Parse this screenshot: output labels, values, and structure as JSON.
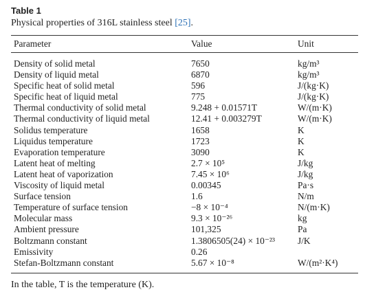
{
  "table_label": "Table 1",
  "caption": "Physical properties of 316L stainless steel",
  "citation": "[25]",
  "caption_end": ".",
  "headers": {
    "parameter": "Parameter",
    "value": "Value",
    "unit": "Unit"
  },
  "rows": [
    {
      "parameter": "Density of solid metal",
      "value": "7650",
      "unit": "kg/m³"
    },
    {
      "parameter": "Density of liquid metal",
      "value": "6870",
      "unit": "kg/m³"
    },
    {
      "parameter": "Specific heat of solid metal",
      "value": "596",
      "unit": "J/(kg·K)"
    },
    {
      "parameter": "Specific heat of liquid metal",
      "value": "775",
      "unit": "J/(kg·K)"
    },
    {
      "parameter": "Thermal conductivity of solid metal",
      "value": "9.248 + 0.01571T",
      "unit": "W/(m·K)"
    },
    {
      "parameter": "Thermal conductivity of liquid metal",
      "value": "12.41 + 0.003279T",
      "unit": "W/(m·K)"
    },
    {
      "parameter": "Solidus temperature",
      "value": "1658",
      "unit": "K"
    },
    {
      "parameter": "Liquidus temperature",
      "value": "1723",
      "unit": "K"
    },
    {
      "parameter": "Evaporation temperature",
      "value": "3090",
      "unit": "K"
    },
    {
      "parameter": "Latent heat of melting",
      "value": "2.7 × 10⁵",
      "unit": "J/kg"
    },
    {
      "parameter": "Latent heat of vaporization",
      "value": "7.45 × 10⁶",
      "unit": "J/kg"
    },
    {
      "parameter": "Viscosity of liquid metal",
      "value": "0.00345",
      "unit": "Pa·s"
    },
    {
      "parameter": "Surface tension",
      "value": "1.6",
      "unit": "N/m"
    },
    {
      "parameter": "Temperature of surface tension",
      "value": "−8 × 10⁻⁴",
      "unit": "N/(m·K)"
    },
    {
      "parameter": "Molecular mass",
      "value": "9.3 × 10⁻²⁶",
      "unit": "kg"
    },
    {
      "parameter": "Ambient pressure",
      "value": "101,325",
      "unit": "Pa"
    },
    {
      "parameter": "Boltzmann constant",
      "value": "1.3806505(24) × 10⁻²³",
      "unit": "J/K"
    },
    {
      "parameter": "Emissivity",
      "value": "0.26",
      "unit": ""
    },
    {
      "parameter": "Stefan-Boltzmann constant",
      "value": "5.67 × 10⁻⁸",
      "unit": "W/(m²·K⁴)"
    }
  ],
  "footnote": "In the table, T is the temperature (K)."
}
